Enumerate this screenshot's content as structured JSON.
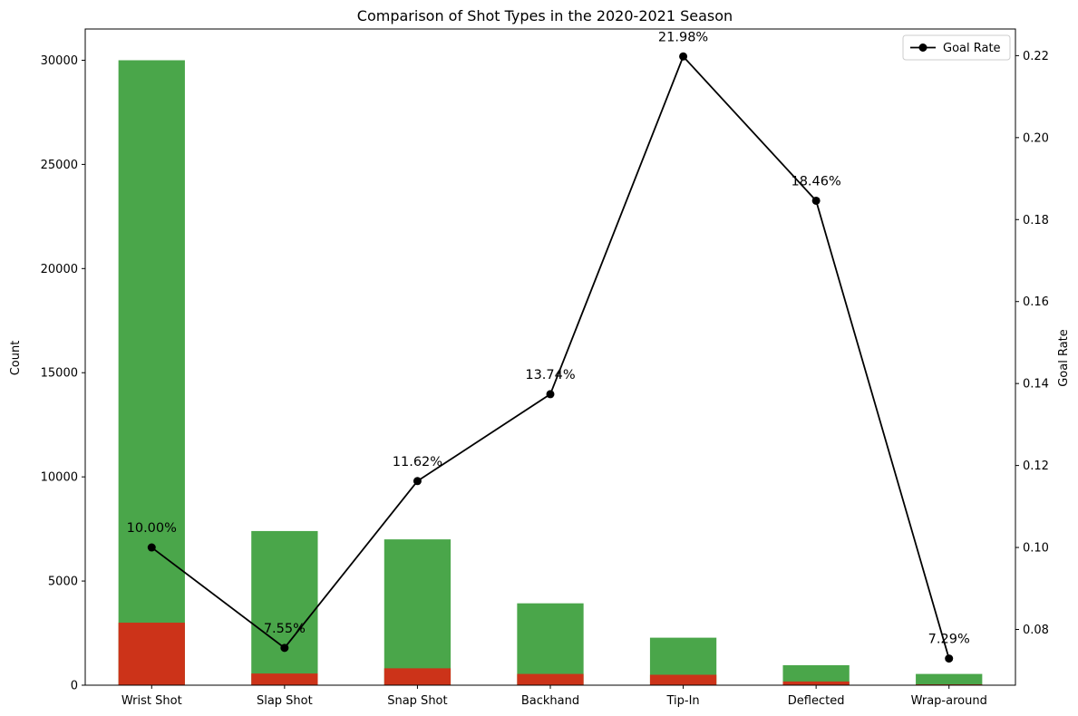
{
  "chart_data": {
    "type": "bar",
    "title": "Comparison of Shot Types in the 2020-2021 Season",
    "xlabel": "",
    "ylabel": "Count",
    "y2label": "Goal Rate",
    "categories": [
      "Wrist Shot",
      "Slap Shot",
      "Snap Shot",
      "Backhand",
      "Tip-In",
      "Deflected",
      "Wrap-around"
    ],
    "series": [
      {
        "kind": "bar",
        "values": [
          30000,
          7400,
          7000,
          3930,
          2280,
          960,
          540
        ],
        "color": "#4aa64a"
      },
      {
        "kind": "bar",
        "values": [
          3000,
          560,
          810,
          540,
          500,
          177,
          40
        ],
        "color": "#cc3319"
      },
      {
        "kind": "line",
        "axis": "right",
        "name": "Goal Rate",
        "values": [
          0.1,
          0.0755,
          0.1162,
          0.1374,
          0.2198,
          0.1846,
          0.0729
        ],
        "color": "#000000"
      }
    ],
    "data_labels": [
      "10.00%",
      "7.55%",
      "11.62%",
      "13.74%",
      "21.98%",
      "18.46%",
      "7.29%"
    ],
    "ylim": [
      0,
      31500
    ],
    "y2lim": [
      0.0664,
      0.2265
    ],
    "yticks": [
      0,
      5000,
      10000,
      15000,
      20000,
      25000,
      30000
    ],
    "y2ticks": [
      0.08,
      0.1,
      0.12,
      0.14,
      0.16,
      0.18,
      0.2,
      0.22
    ],
    "grid": false,
    "legend": {
      "position": "top-right",
      "entries": [
        "Goal Rate"
      ]
    }
  }
}
